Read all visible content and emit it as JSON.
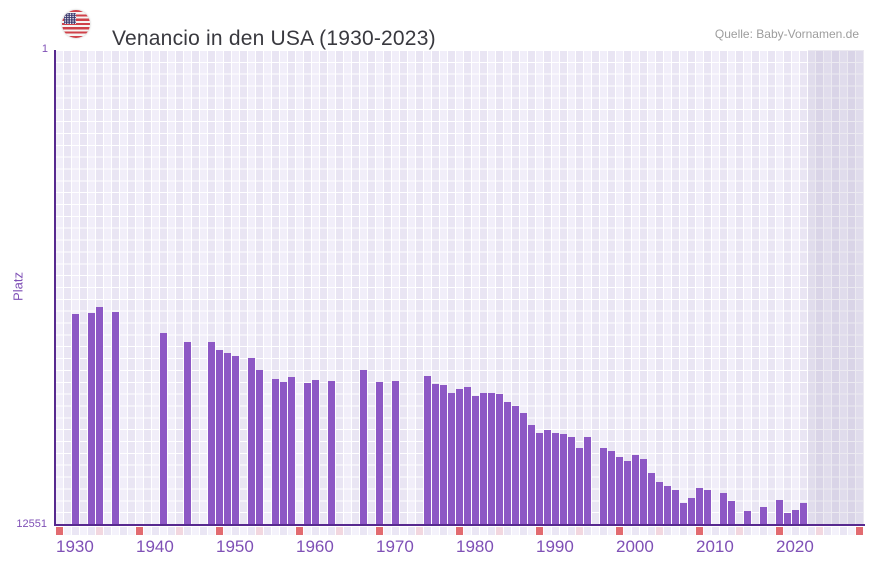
{
  "header": {
    "title": "Venancio in den USA (1930-2023)",
    "source": "Quelle: Baby-Vornamen.de",
    "flag_icon": "us-flag-circle-icon"
  },
  "y_axis": {
    "label": "Platz",
    "top_tick": "1",
    "bottom_tick": "12551",
    "min": 1,
    "max": 12551,
    "inverted": true
  },
  "x_axis": {
    "tick_labels": [
      "1930",
      "1940",
      "1950",
      "1960",
      "1970",
      "1980",
      "1990",
      "2000",
      "2010",
      "2020"
    ],
    "axis_start_year": 1930,
    "axis_end_year": 2030,
    "data_start_year": 1930,
    "data_end_year": 2023,
    "future_band_start_year": 2024
  },
  "chart_data": {
    "type": "bar",
    "title": "Venancio in den USA (1930-2023)",
    "xlabel": "",
    "ylabel": "Platz",
    "ylim": [
      1,
      12551
    ],
    "y_inverted": true,
    "grid": true,
    "series": [
      {
        "year": 1932,
        "rank": 6990
      },
      {
        "year": 1934,
        "rank": 6960
      },
      {
        "year": 1935,
        "rank": 6810
      },
      {
        "year": 1937,
        "rank": 6930
      },
      {
        "year": 1943,
        "rank": 7480
      },
      {
        "year": 1946,
        "rank": 7740
      },
      {
        "year": 1949,
        "rank": 7730
      },
      {
        "year": 1950,
        "rank": 7930
      },
      {
        "year": 1951,
        "rank": 8030
      },
      {
        "year": 1952,
        "rank": 8100
      },
      {
        "year": 1954,
        "rank": 8160
      },
      {
        "year": 1955,
        "rank": 8470
      },
      {
        "year": 1957,
        "rank": 8700
      },
      {
        "year": 1958,
        "rank": 8800
      },
      {
        "year": 1959,
        "rank": 8650
      },
      {
        "year": 1961,
        "rank": 8810
      },
      {
        "year": 1962,
        "rank": 8740
      },
      {
        "year": 1964,
        "rank": 8760
      },
      {
        "year": 1968,
        "rank": 8470
      },
      {
        "year": 1970,
        "rank": 8800
      },
      {
        "year": 1972,
        "rank": 8770
      },
      {
        "year": 1976,
        "rank": 8640
      },
      {
        "year": 1977,
        "rank": 8850
      },
      {
        "year": 1978,
        "rank": 8860
      },
      {
        "year": 1979,
        "rank": 9090
      },
      {
        "year": 1980,
        "rank": 8970
      },
      {
        "year": 1981,
        "rank": 8930
      },
      {
        "year": 1982,
        "rank": 9150
      },
      {
        "year": 1983,
        "rank": 9090
      },
      {
        "year": 1984,
        "rank": 9070
      },
      {
        "year": 1985,
        "rank": 9110
      },
      {
        "year": 1986,
        "rank": 9320
      },
      {
        "year": 1987,
        "rank": 9420
      },
      {
        "year": 1988,
        "rank": 9610
      },
      {
        "year": 1989,
        "rank": 9930
      },
      {
        "year": 1990,
        "rank": 10150
      },
      {
        "year": 1991,
        "rank": 10060
      },
      {
        "year": 1992,
        "rank": 10140
      },
      {
        "year": 1993,
        "rank": 10170
      },
      {
        "year": 1994,
        "rank": 10240
      },
      {
        "year": 1995,
        "rank": 10540
      },
      {
        "year": 1996,
        "rank": 10240
      },
      {
        "year": 1998,
        "rank": 10550
      },
      {
        "year": 1999,
        "rank": 10630
      },
      {
        "year": 2000,
        "rank": 10770
      },
      {
        "year": 2001,
        "rank": 10890
      },
      {
        "year": 2002,
        "rank": 10730
      },
      {
        "year": 2003,
        "rank": 10840
      },
      {
        "year": 2004,
        "rank": 11190
      },
      {
        "year": 2005,
        "rank": 11450
      },
      {
        "year": 2006,
        "rank": 11550
      },
      {
        "year": 2007,
        "rank": 11660
      },
      {
        "year": 2008,
        "rank": 11990
      },
      {
        "year": 2009,
        "rank": 11870
      },
      {
        "year": 2010,
        "rank": 11590
      },
      {
        "year": 2011,
        "rank": 11650
      },
      {
        "year": 2013,
        "rank": 11720
      },
      {
        "year": 2014,
        "rank": 11950
      },
      {
        "year": 2016,
        "rank": 12200
      },
      {
        "year": 2018,
        "rank": 12100
      },
      {
        "year": 2020,
        "rank": 11920
      },
      {
        "year": 2021,
        "rank": 12270
      },
      {
        "year": 2022,
        "rank": 12180
      },
      {
        "year": 2023,
        "rank": 11990
      }
    ],
    "years_without_bar": [
      1930,
      1931,
      1933,
      1936,
      1938,
      1939,
      1940,
      1941,
      1942,
      1944,
      1945,
      1947,
      1948,
      1953,
      1956,
      1960,
      1963,
      1965,
      1966,
      1967,
      1969,
      1971,
      1973,
      1974,
      1975,
      1997,
      2012,
      2015,
      2017,
      2019
    ],
    "legend": null
  },
  "colors": {
    "bar": "#8d58c5",
    "axis_line": "#57298f",
    "axis_text": "#7f50b6",
    "title_text": "#39393f",
    "source_text": "#9d9d9d",
    "ruler_decade": "#e26b70",
    "ruler_half_decade": "#f2d7df",
    "ruler_cell_a": "#eae6f4",
    "ruler_cell_b": "#f4f2fb",
    "grid_cell_a": "#f1eef9",
    "grid_cell_b": "#e9e5f3"
  }
}
